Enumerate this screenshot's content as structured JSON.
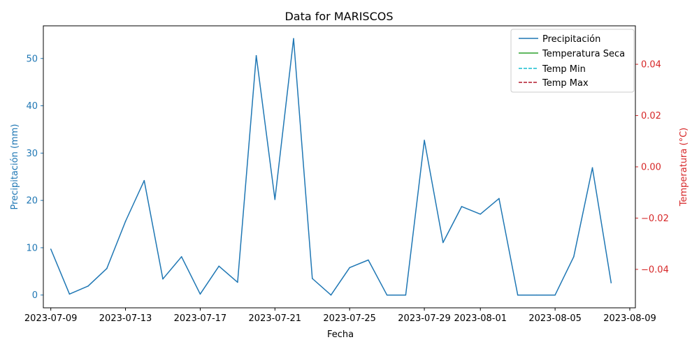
{
  "chart_data": {
    "type": "line",
    "title": "Data for MARISCOS",
    "xlabel": "Fecha",
    "ylabel_left": "Precipitación (mm)",
    "ylabel_right": "Temperatura (°C)",
    "colors": {
      "precip": "#1f77b4",
      "temp_seca": "#2ca02c",
      "temp_min": "#17becf",
      "temp_max": "#b2182b",
      "right_axis": "#d62728"
    },
    "x_range_days": [
      -0.4,
      31.3
    ],
    "x_ticks": [
      {
        "day": 0,
        "label": "2023-07-09"
      },
      {
        "day": 4,
        "label": "2023-07-13"
      },
      {
        "day": 8,
        "label": "2023-07-17"
      },
      {
        "day": 12,
        "label": "2023-07-21"
      },
      {
        "day": 16,
        "label": "2023-07-25"
      },
      {
        "day": 20,
        "label": "2023-07-29"
      },
      {
        "day": 23,
        "label": "2023-08-01"
      },
      {
        "day": 27,
        "label": "2023-08-05"
      },
      {
        "day": 31,
        "label": "2023-08-09"
      }
    ],
    "ylim_left": [
      -2.7,
      56.9
    ],
    "yticks_left": [
      0,
      10,
      20,
      30,
      40,
      50
    ],
    "ylim_right": [
      -0.055,
      0.055
    ],
    "yticks_right": [
      {
        "v": 0.04,
        "label": "0.04"
      },
      {
        "v": 0.02,
        "label": "0.02"
      },
      {
        "v": 0.0,
        "label": "0.00"
      },
      {
        "v": -0.02,
        "label": "−0.02"
      },
      {
        "v": -0.04,
        "label": "−0.04"
      }
    ],
    "series": [
      {
        "name": "Precipitación",
        "style": "solid",
        "days": [
          0,
          1,
          2,
          3,
          4,
          5,
          6,
          7,
          8,
          9,
          10,
          11,
          12,
          13,
          14,
          15,
          16,
          17,
          18,
          19,
          20,
          21,
          22,
          23,
          24,
          25,
          26,
          27,
          28,
          29,
          30
        ],
        "values": [
          9.7,
          0.2,
          1.9,
          5.6,
          15.6,
          24.2,
          3.4,
          8.1,
          0.2,
          6.1,
          2.7,
          50.6,
          20.2,
          54.2,
          3.5,
          0.0,
          5.8,
          7.4,
          0.0,
          0.0,
          32.7,
          11.1,
          18.7,
          17.1,
          20.4,
          0.0,
          0.0,
          0.0,
          8.1,
          26.9,
          2.6
        ]
      },
      {
        "name": "Temperatura Seca",
        "style": "solid",
        "days": [],
        "values": []
      },
      {
        "name": "Temp Min",
        "style": "dashed",
        "days": [],
        "values": []
      },
      {
        "name": "Temp Max",
        "style": "dashed",
        "days": [],
        "values": []
      }
    ],
    "legend_position": "top-right"
  }
}
